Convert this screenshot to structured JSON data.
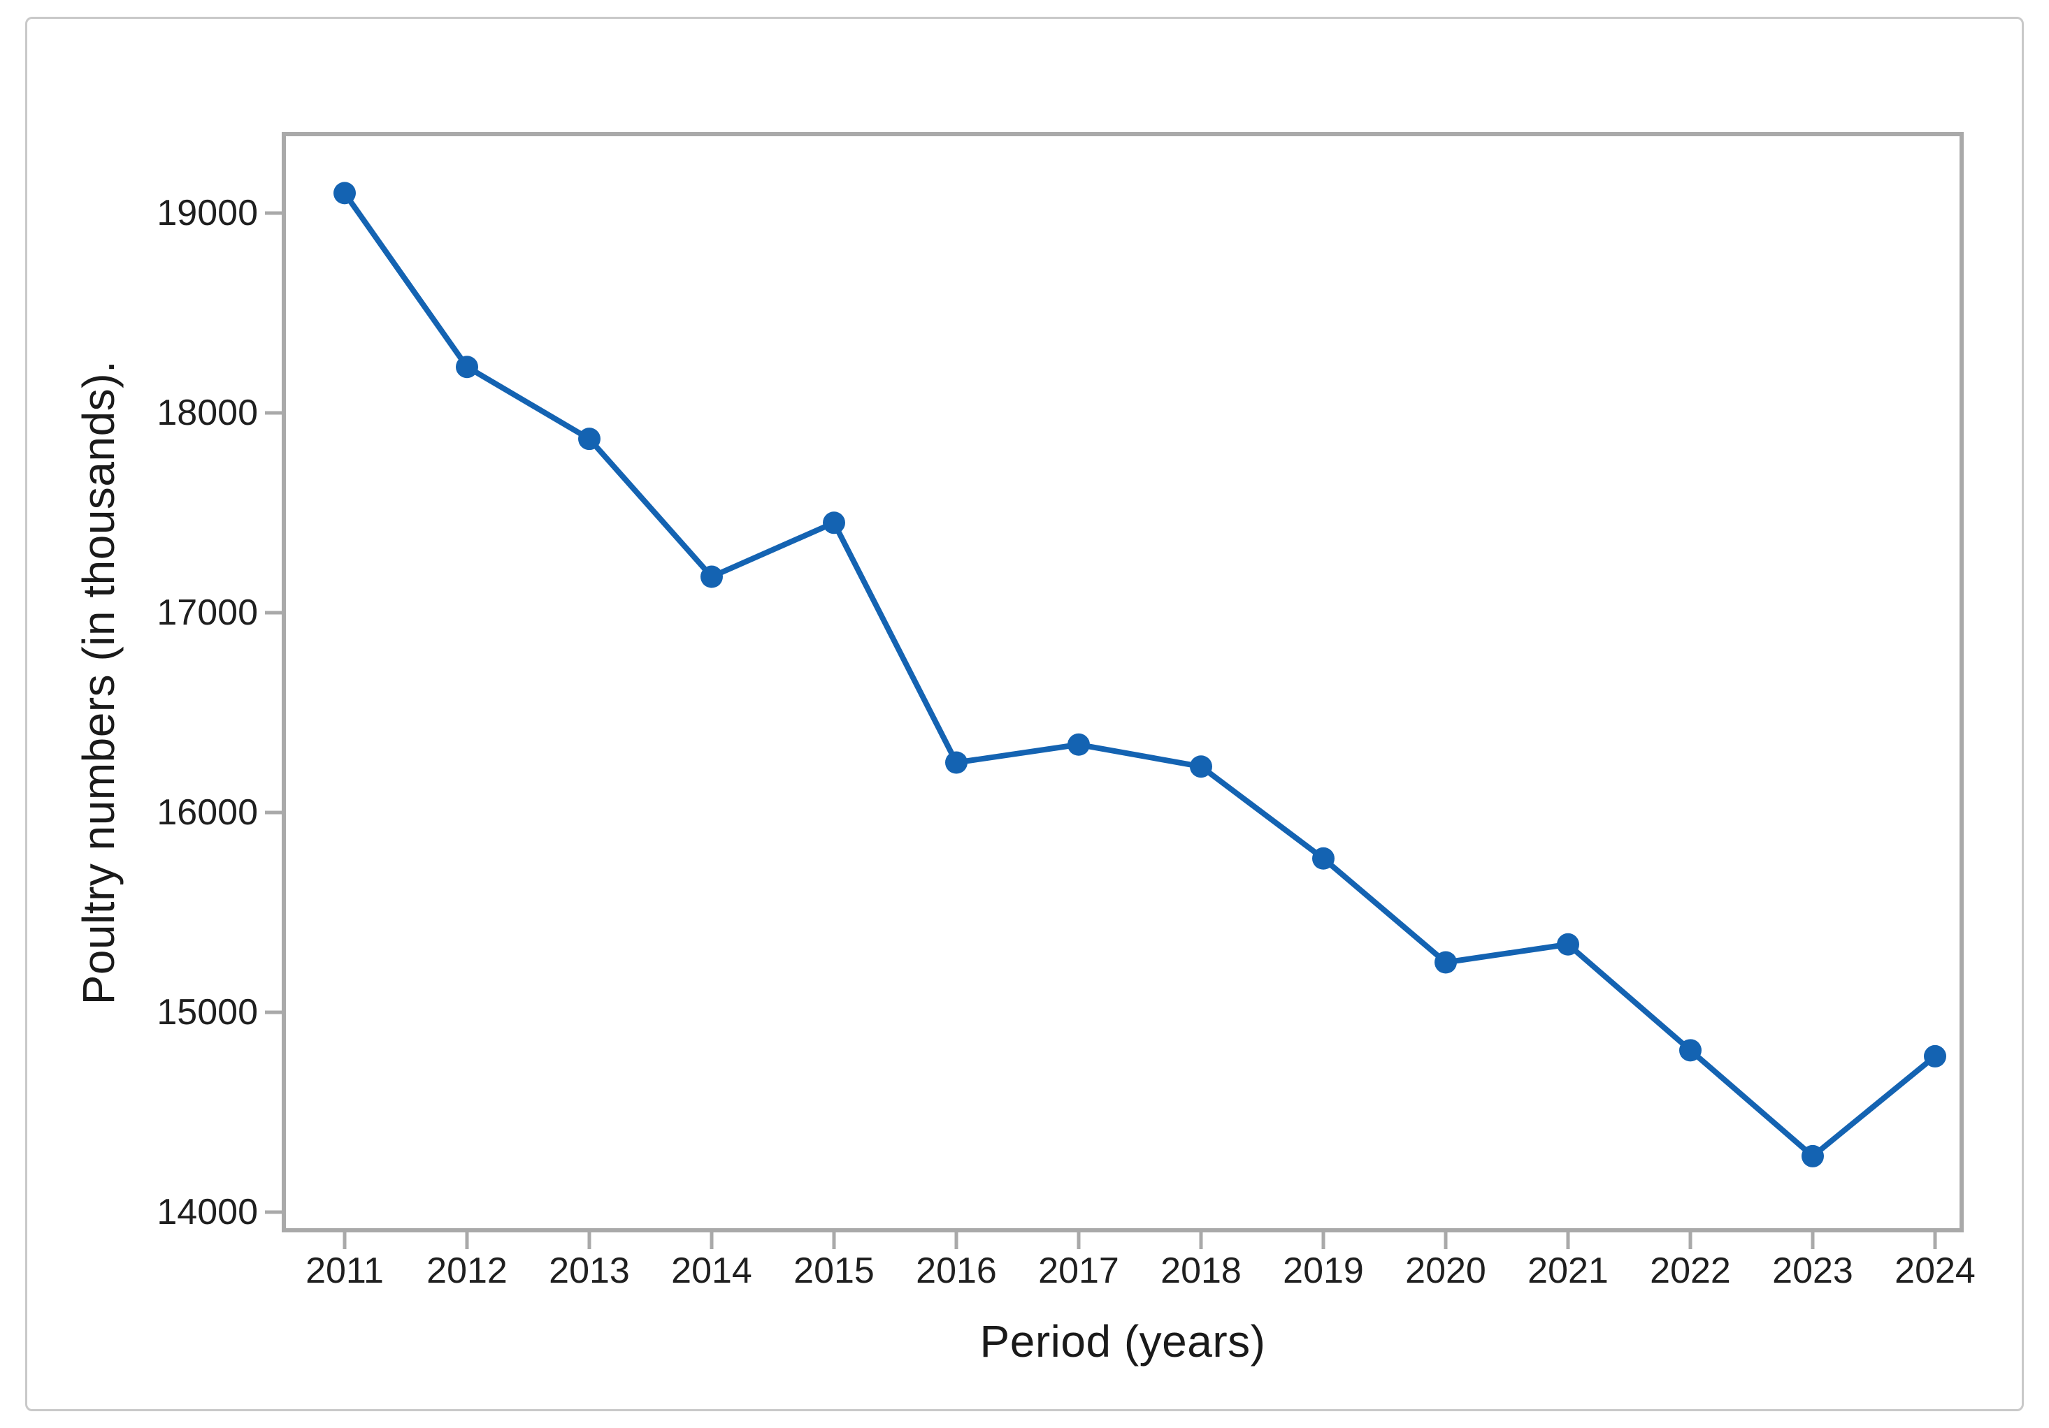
{
  "figure": {
    "background_color": "#ffffff",
    "card_border_color": "#c9c9c9"
  },
  "chart_data": {
    "type": "line",
    "title": "",
    "xlabel": "Period (years)",
    "ylabel": "Poultry numbers (in thousands).",
    "categories": [
      "2011",
      "2012",
      "2013",
      "2014",
      "2015",
      "2016",
      "2017",
      "2018",
      "2019",
      "2020",
      "2021",
      "2022",
      "2023",
      "2024"
    ],
    "series": [
      {
        "name": "Poultry numbers",
        "values": [
          19100,
          18230,
          17870,
          17180,
          17450,
          16250,
          16340,
          16230,
          15770,
          15250,
          15340,
          14810,
          14280,
          14780
        ]
      }
    ],
    "yticks": [
      14000,
      15000,
      16000,
      17000,
      18000,
      19000
    ],
    "ylim": [
      13910,
      19400
    ],
    "grid": false,
    "legend_position": "none",
    "marker": "circle",
    "line_color": "#1463b2",
    "marker_color": "#1463b2",
    "axis_color": "#a9a9a9",
    "tick_label_color": "#1f1f1f"
  }
}
